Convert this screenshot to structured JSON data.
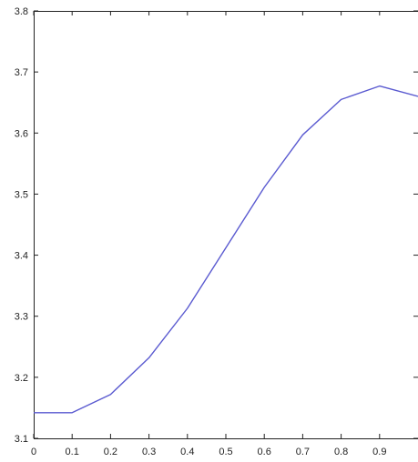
{
  "chart_data": {
    "type": "line",
    "title": "",
    "xlabel": "",
    "ylabel": "",
    "xlim": [
      0,
      1
    ],
    "ylim": [
      3.1,
      3.8
    ],
    "x_ticks": [
      "0",
      "0.1",
      "0.2",
      "0.3",
      "0.4",
      "0.5",
      "0.6",
      "0.7",
      "0.8",
      "0.9"
    ],
    "y_ticks": [
      "3.1",
      "3.2",
      "3.3",
      "3.4",
      "3.5",
      "3.6",
      "3.7",
      "3.8"
    ],
    "grid": false,
    "legend": "none",
    "series": [
      {
        "color": "#5a5ad0",
        "x": [
          0,
          0.1,
          0.2,
          0.3,
          0.4,
          0.5,
          0.6,
          0.7,
          0.8,
          0.9,
          1.0
        ],
        "y": [
          3.142,
          3.142,
          3.172,
          3.232,
          3.313,
          3.412,
          3.511,
          3.597,
          3.655,
          3.677,
          3.66
        ]
      }
    ]
  }
}
